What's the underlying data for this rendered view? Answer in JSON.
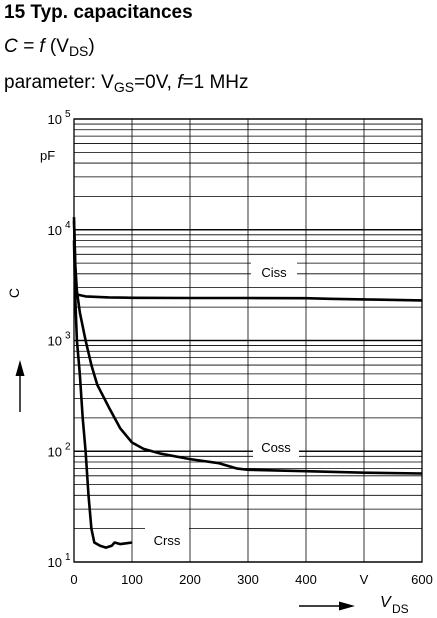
{
  "header": {
    "title": "15 Typ. capacitances",
    "formula": {
      "lhs": "C = ",
      "func": "f",
      "open": " (V",
      "sub": "DS",
      "close": ")"
    },
    "param": {
      "prefix": "parameter: V",
      "sub": "GS",
      "mid": "=0V, ",
      "f": "f",
      "rest": "=1 MHz"
    }
  },
  "chart_data": {
    "type": "line",
    "title": "15 Typ. capacitances",
    "xlabel": "V_DS",
    "ylabel": "C",
    "x_unit": "V",
    "y_unit": "pF",
    "y_scale": "log",
    "xlim": [
      0,
      600
    ],
    "ylim": [
      10,
      100000
    ],
    "x_ticks": [
      "0",
      "100",
      "200",
      "300",
      "400",
      "V",
      "600"
    ],
    "y_ticks": [
      {
        "base": "10",
        "exp": "5"
      },
      {
        "base": "10",
        "exp": "4"
      },
      {
        "base": "10",
        "exp": "3"
      },
      {
        "base": "10",
        "exp": "2"
      },
      {
        "base": "10",
        "exp": "1"
      }
    ],
    "grid": true,
    "series": [
      {
        "name": "Ciss",
        "points": [
          [
            0,
            13000
          ],
          [
            1,
            8000
          ],
          [
            3,
            3000
          ],
          [
            5,
            2600
          ],
          [
            20,
            2500
          ],
          [
            60,
            2450
          ],
          [
            100,
            2430
          ],
          [
            200,
            2420
          ],
          [
            300,
            2420
          ],
          [
            400,
            2410
          ],
          [
            440,
            2380
          ],
          [
            500,
            2350
          ],
          [
            600,
            2300
          ]
        ]
      },
      {
        "name": "Coss",
        "points": [
          [
            0,
            12000
          ],
          [
            2,
            5000
          ],
          [
            5,
            2800
          ],
          [
            10,
            1800
          ],
          [
            20,
            1000
          ],
          [
            30,
            600
          ],
          [
            40,
            400
          ],
          [
            60,
            250
          ],
          [
            80,
            160
          ],
          [
            100,
            120
          ],
          [
            120,
            105
          ],
          [
            150,
            95
          ],
          [
            200,
            85
          ],
          [
            250,
            78
          ],
          [
            280,
            70
          ],
          [
            300,
            68
          ],
          [
            400,
            66
          ],
          [
            500,
            64
          ],
          [
            600,
            63
          ]
        ]
      },
      {
        "name": "Crss",
        "points": [
          [
            0,
            8000
          ],
          [
            2,
            2500
          ],
          [
            5,
            1000
          ],
          [
            10,
            500
          ],
          [
            15,
            200
          ],
          [
            20,
            100
          ],
          [
            25,
            40
          ],
          [
            30,
            20
          ],
          [
            35,
            15
          ],
          [
            45,
            14
          ],
          [
            55,
            13.5
          ],
          [
            65,
            14
          ],
          [
            70,
            15
          ],
          [
            80,
            14.5
          ],
          [
            100,
            15
          ]
        ]
      }
    ]
  }
}
